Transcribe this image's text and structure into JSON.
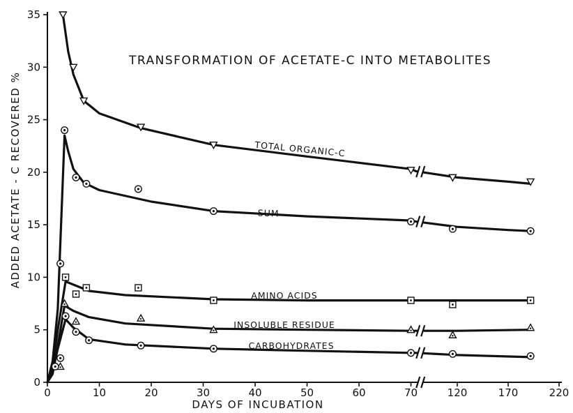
{
  "chart_data": {
    "type": "line",
    "title": "TRANSFORMATION OF ACETATE-C INTO METABOLITES",
    "xlabel": "DAYS OF INCUBATION",
    "ylabel": "ADDED ACETATE - C RECOVERED %",
    "ylim": [
      0,
      35
    ],
    "y_ticks": [
      0,
      5,
      10,
      15,
      20,
      25,
      30,
      35
    ],
    "x_ticks": [
      0,
      10,
      20,
      30,
      40,
      50,
      60,
      70,
      120,
      170,
      220
    ],
    "x_axis_note": "broken x-axis between 70 and 120",
    "grid": false,
    "legend": "labels placed on curves",
    "series": [
      {
        "name": "TOTAL ORGANIC-C",
        "marker": "triangle-down",
        "points": [
          [
            3,
            35
          ],
          [
            5,
            30
          ],
          [
            7,
            26.8
          ],
          [
            18,
            24.3
          ],
          [
            32,
            22.6
          ],
          [
            70,
            20.2
          ],
          [
            115,
            19.5
          ],
          [
            192,
            19.1
          ]
        ],
        "curve": [
          [
            3,
            35
          ],
          [
            4,
            31.5
          ],
          [
            5,
            29.3
          ],
          [
            7,
            26.8
          ],
          [
            10,
            25.6
          ],
          [
            18,
            24.2
          ],
          [
            32,
            22.6
          ],
          [
            50,
            21.5
          ],
          [
            70,
            20.3
          ],
          [
            75,
            20.1
          ],
          [
            120,
            19.5
          ],
          [
            170,
            19.1
          ],
          [
            192,
            18.9
          ]
        ]
      },
      {
        "name": "SUM",
        "marker": "circle-dot",
        "points": [
          [
            2.5,
            11.3
          ],
          [
            3.3,
            24
          ],
          [
            5.5,
            19.5
          ],
          [
            7.5,
            18.9
          ],
          [
            17.5,
            18.4
          ],
          [
            32,
            16.3
          ],
          [
            70,
            15.3
          ],
          [
            115,
            14.6
          ],
          [
            192,
            14.4
          ]
        ],
        "curve": [
          [
            0,
            0
          ],
          [
            1,
            2
          ],
          [
            2,
            7
          ],
          [
            3.3,
            23.5
          ],
          [
            4,
            22
          ],
          [
            5,
            20.3
          ],
          [
            7,
            19
          ],
          [
            10,
            18.3
          ],
          [
            20,
            17.2
          ],
          [
            32,
            16.3
          ],
          [
            50,
            15.8
          ],
          [
            70,
            15.4
          ],
          [
            75,
            15.3
          ],
          [
            120,
            14.8
          ],
          [
            170,
            14.5
          ],
          [
            192,
            14.4
          ]
        ]
      },
      {
        "name": "AMINO ACIDS",
        "marker": "square-dot",
        "points": [
          [
            3.5,
            10
          ],
          [
            5.5,
            8.4
          ],
          [
            7.5,
            9
          ],
          [
            17.5,
            9
          ],
          [
            32,
            7.8
          ],
          [
            70,
            7.8
          ],
          [
            115,
            7.4
          ],
          [
            192,
            7.8
          ]
        ],
        "curve": [
          [
            0,
            0
          ],
          [
            1,
            1.5
          ],
          [
            2,
            5
          ],
          [
            3.5,
            9.6
          ],
          [
            5,
            9.3
          ],
          [
            8,
            8.7
          ],
          [
            15,
            8.3
          ],
          [
            32,
            7.9
          ],
          [
            50,
            7.8
          ],
          [
            70,
            7.8
          ],
          [
            75,
            7.8
          ],
          [
            120,
            7.8
          ],
          [
            192,
            7.8
          ]
        ]
      },
      {
        "name": "INSOLUBLE RESIDUE",
        "marker": "triangle-up",
        "points": [
          [
            2.5,
            1.5
          ],
          [
            3.3,
            7.5
          ],
          [
            5.5,
            5.8
          ],
          [
            18,
            6.1
          ],
          [
            32,
            5
          ],
          [
            70,
            5
          ],
          [
            115,
            4.5
          ],
          [
            192,
            5.2
          ]
        ],
        "curve": [
          [
            0,
            0
          ],
          [
            1,
            0.8
          ],
          [
            2,
            3.5
          ],
          [
            3.3,
            7.3
          ],
          [
            5,
            6.8
          ],
          [
            8,
            6.2
          ],
          [
            15,
            5.6
          ],
          [
            32,
            5.1
          ],
          [
            50,
            5
          ],
          [
            70,
            4.9
          ],
          [
            75,
            4.9
          ],
          [
            120,
            4.9
          ],
          [
            192,
            5
          ]
        ]
      },
      {
        "name": "CARBOHYDRATES",
        "marker": "circle-dot",
        "points": [
          [
            1.5,
            1.5
          ],
          [
            2.5,
            2.3
          ],
          [
            3.5,
            6.3
          ],
          [
            5.5,
            4.8
          ],
          [
            8,
            4
          ],
          [
            18,
            3.5
          ],
          [
            32,
            3.2
          ],
          [
            70,
            2.8
          ],
          [
            115,
            2.7
          ],
          [
            192,
            2.5
          ]
        ],
        "curve": [
          [
            0,
            0
          ],
          [
            1,
            1
          ],
          [
            2,
            3.2
          ],
          [
            3.5,
            6
          ],
          [
            5,
            5.2
          ],
          [
            8,
            4.1
          ],
          [
            15,
            3.6
          ],
          [
            32,
            3.2
          ],
          [
            50,
            3
          ],
          [
            70,
            2.8
          ],
          [
            75,
            2.8
          ],
          [
            120,
            2.6
          ],
          [
            192,
            2.4
          ]
        ]
      }
    ]
  }
}
